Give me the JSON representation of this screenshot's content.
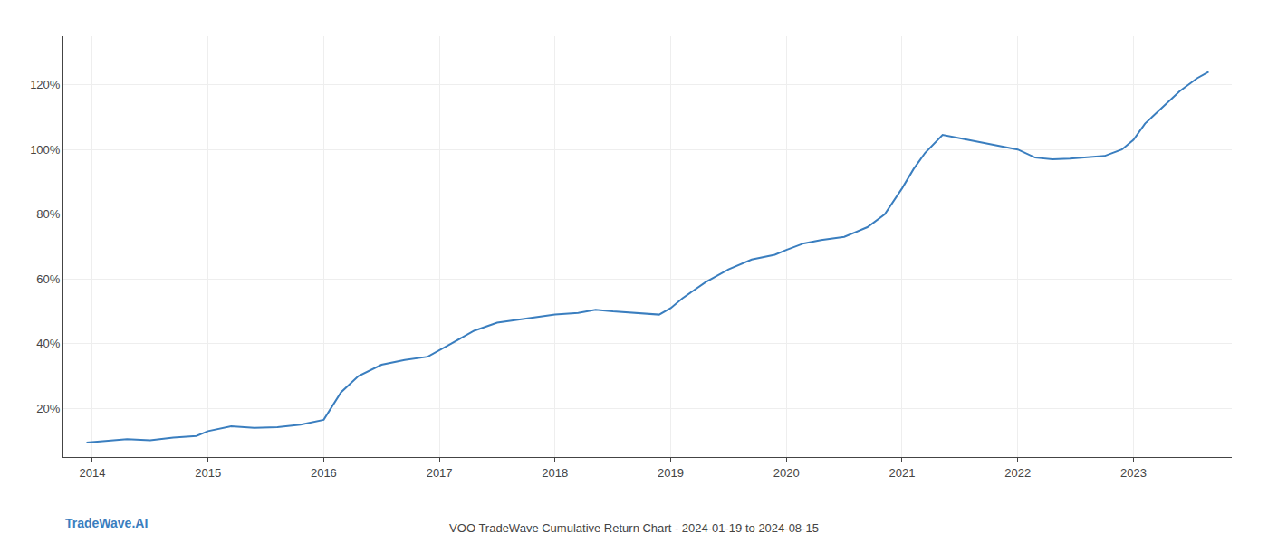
{
  "chart_data": {
    "type": "line",
    "title": "VOO TradeWave Cumulative Return Chart - 2024-01-19 to 2024-08-15",
    "annotations": [
      "TradeWave.AI"
    ],
    "x": [
      2013.95,
      2014.1,
      2014.3,
      2014.5,
      2014.7,
      2014.9,
      2015.0,
      2015.2,
      2015.4,
      2015.6,
      2015.8,
      2016.0,
      2016.15,
      2016.3,
      2016.5,
      2016.7,
      2016.9,
      2017.1,
      2017.3,
      2017.5,
      2017.7,
      2017.9,
      2018.0,
      2018.2,
      2018.35,
      2018.5,
      2018.7,
      2018.9,
      2019.0,
      2019.1,
      2019.3,
      2019.5,
      2019.7,
      2019.9,
      2020.0,
      2020.15,
      2020.3,
      2020.5,
      2020.7,
      2020.85,
      2021.0,
      2021.1,
      2021.2,
      2021.35,
      2021.5,
      2021.65,
      2021.8,
      2021.95,
      2022.0,
      2022.15,
      2022.3,
      2022.45,
      2022.6,
      2022.75,
      2022.9,
      2023.0,
      2023.1,
      2023.25,
      2023.4,
      2023.55,
      2023.65
    ],
    "values": [
      9.5,
      10.0,
      10.5,
      10.2,
      11.0,
      11.5,
      13.0,
      14.5,
      14.0,
      14.2,
      15.0,
      16.5,
      25.0,
      30.0,
      33.5,
      35.0,
      36.0,
      40.0,
      44.0,
      46.5,
      47.5,
      48.5,
      49.0,
      49.5,
      50.5,
      50.0,
      49.5,
      49.0,
      51.0,
      54.0,
      59.0,
      63.0,
      66.0,
      67.5,
      69.0,
      71.0,
      72.0,
      73.0,
      76.0,
      80.0,
      88.0,
      94.0,
      99.0,
      104.5,
      103.5,
      102.5,
      101.5,
      100.5,
      100.0,
      97.5,
      97.0,
      97.2,
      97.5,
      98.0,
      100.0,
      103.0,
      108.0,
      113.0,
      118.0,
      122.0,
      124.0
    ],
    "color": "#3a7ebf",
    "xlim": [
      2013.75,
      2023.85
    ],
    "xticks": [
      2014,
      2015,
      2016,
      2017,
      2018,
      2019,
      2020,
      2021,
      2022,
      2023
    ],
    "ylim": [
      5,
      135
    ],
    "yticks": [
      {
        "value": 20,
        "label": "20%"
      },
      {
        "value": 40,
        "label": "40%"
      },
      {
        "value": 60,
        "label": "60%"
      },
      {
        "value": 80,
        "label": "80%"
      },
      {
        "value": 100,
        "label": "100%"
      },
      {
        "value": 120,
        "label": "120%"
      }
    ],
    "grid": true
  }
}
